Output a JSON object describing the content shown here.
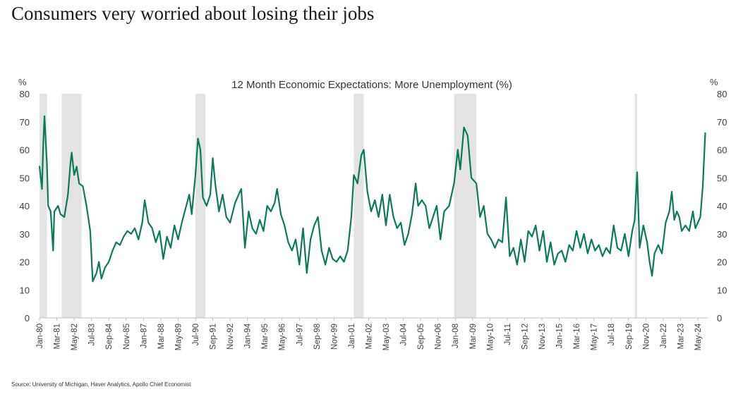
{
  "headline": "Consumers very worried about losing their jobs",
  "source": "Source: University of Michigan, Haver Analytics, Apollo Chief Economist",
  "chart_data": {
    "type": "line",
    "title": "12 Month Economic Expectations: More Unemployment (%)",
    "y_unit_left": "%",
    "y_unit_right": "%",
    "ylim": [
      0,
      80
    ],
    "yticks": [
      0,
      10,
      20,
      30,
      40,
      50,
      60,
      70,
      80
    ],
    "xlim": [
      "1980-01",
      "2025-01"
    ],
    "line_color": "#0b7a5a",
    "recession_color": "#e3e3e3",
    "x_tick_labels": [
      "Jan-80",
      "Mar-81",
      "May-82",
      "Jul-83",
      "Sep-84",
      "Nov-85",
      "Jan-87",
      "Mar-88",
      "May-89",
      "Jul-90",
      "Sep-91",
      "Nov-92",
      "Jan-94",
      "Mar-95",
      "May-96",
      "Jul-97",
      "Sep-98",
      "Nov-99",
      "Jan-01",
      "Mar-02",
      "May-03",
      "Jul-04",
      "Sep-05",
      "Nov-06",
      "Jan-08",
      "Mar-09",
      "May-10",
      "Jul-11",
      "Sep-12",
      "Nov-13",
      "Jan-15",
      "Mar-16",
      "May-17",
      "Jul-18",
      "Sep-19",
      "Nov-20",
      "Jan-22",
      "Mar-23",
      "May-24"
    ],
    "recessions": [
      [
        "1980-01",
        "1980-07"
      ],
      [
        "1981-07",
        "1982-11"
      ],
      [
        "1990-07",
        "1991-03"
      ],
      [
        "2001-03",
        "2001-11"
      ],
      [
        "2007-12",
        "2009-06"
      ],
      [
        "2020-02",
        "2020-04"
      ]
    ],
    "series": [
      {
        "points": [
          [
            "1980-01",
            54
          ],
          [
            "1980-03",
            46
          ],
          [
            "1980-04",
            62
          ],
          [
            "1980-05",
            72
          ],
          [
            "1980-07",
            55
          ],
          [
            "1980-08",
            40
          ],
          [
            "1980-10",
            38
          ],
          [
            "1980-12",
            24
          ],
          [
            "1981-01",
            38
          ],
          [
            "1981-04",
            40
          ],
          [
            "1981-06",
            37
          ],
          [
            "1981-09",
            36
          ],
          [
            "1981-12",
            44
          ],
          [
            "1982-02",
            55
          ],
          [
            "1982-03",
            59
          ],
          [
            "1982-05",
            51
          ],
          [
            "1982-07",
            54
          ],
          [
            "1982-09",
            48
          ],
          [
            "1982-12",
            47
          ],
          [
            "1983-03",
            40
          ],
          [
            "1983-06",
            31
          ],
          [
            "1983-08",
            13
          ],
          [
            "1983-11",
            16
          ],
          [
            "1984-01",
            20
          ],
          [
            "1984-03",
            14
          ],
          [
            "1984-06",
            18
          ],
          [
            "1984-09",
            20
          ],
          [
            "1984-12",
            24
          ],
          [
            "1985-03",
            27
          ],
          [
            "1985-06",
            26
          ],
          [
            "1985-09",
            29
          ],
          [
            "1985-12",
            31
          ],
          [
            "1986-03",
            30
          ],
          [
            "1986-06",
            32
          ],
          [
            "1986-09",
            28
          ],
          [
            "1986-12",
            34
          ],
          [
            "1987-02",
            42
          ],
          [
            "1987-05",
            34
          ],
          [
            "1987-08",
            32
          ],
          [
            "1987-11",
            27
          ],
          [
            "1988-02",
            31
          ],
          [
            "1988-05",
            21
          ],
          [
            "1988-08",
            29
          ],
          [
            "1988-11",
            25
          ],
          [
            "1989-02",
            33
          ],
          [
            "1989-05",
            28
          ],
          [
            "1989-08",
            34
          ],
          [
            "1989-11",
            39
          ],
          [
            "1990-02",
            44
          ],
          [
            "1990-04",
            37
          ],
          [
            "1990-07",
            51
          ],
          [
            "1990-09",
            64
          ],
          [
            "1990-11",
            60
          ],
          [
            "1991-01",
            43
          ],
          [
            "1991-04",
            40
          ],
          [
            "1991-07",
            44
          ],
          [
            "1991-09",
            57
          ],
          [
            "1991-11",
            48
          ],
          [
            "1992-02",
            38
          ],
          [
            "1992-05",
            44
          ],
          [
            "1992-08",
            36
          ],
          [
            "1992-11",
            34
          ],
          [
            "1993-03",
            41
          ],
          [
            "1993-06",
            44
          ],
          [
            "1993-08",
            46
          ],
          [
            "1993-11",
            25
          ],
          [
            "1994-02",
            38
          ],
          [
            "1994-05",
            32
          ],
          [
            "1994-08",
            30
          ],
          [
            "1994-11",
            35
          ],
          [
            "1995-02",
            31
          ],
          [
            "1995-05",
            40
          ],
          [
            "1995-08",
            38
          ],
          [
            "1995-11",
            41
          ],
          [
            "1996-01",
            46
          ],
          [
            "1996-04",
            37
          ],
          [
            "1996-07",
            33
          ],
          [
            "1996-10",
            27
          ],
          [
            "1997-01",
            24
          ],
          [
            "1997-04",
            28
          ],
          [
            "1997-07",
            19
          ],
          [
            "1997-10",
            32
          ],
          [
            "1998-01",
            16
          ],
          [
            "1998-04",
            28
          ],
          [
            "1998-07",
            33
          ],
          [
            "1998-10",
            36
          ],
          [
            "1999-01",
            24
          ],
          [
            "1999-04",
            19
          ],
          [
            "1999-07",
            25
          ],
          [
            "1999-10",
            21
          ],
          [
            "2000-01",
            20
          ],
          [
            "2000-04",
            22
          ],
          [
            "2000-07",
            20
          ],
          [
            "2000-10",
            24
          ],
          [
            "2001-01",
            36
          ],
          [
            "2001-03",
            51
          ],
          [
            "2001-06",
            48
          ],
          [
            "2001-09",
            58
          ],
          [
            "2001-11",
            60
          ],
          [
            "2002-02",
            45
          ],
          [
            "2002-05",
            38
          ],
          [
            "2002-08",
            42
          ],
          [
            "2002-11",
            36
          ],
          [
            "2003-02",
            44
          ],
          [
            "2003-05",
            33
          ],
          [
            "2003-08",
            44
          ],
          [
            "2003-11",
            36
          ],
          [
            "2004-02",
            32
          ],
          [
            "2004-05",
            34
          ],
          [
            "2004-08",
            26
          ],
          [
            "2004-11",
            30
          ],
          [
            "2005-02",
            37
          ],
          [
            "2005-05",
            48
          ],
          [
            "2005-07",
            40
          ],
          [
            "2005-10",
            42
          ],
          [
            "2006-01",
            40
          ],
          [
            "2006-04",
            32
          ],
          [
            "2006-07",
            36
          ],
          [
            "2006-10",
            40
          ],
          [
            "2007-01",
            28
          ],
          [
            "2007-04",
            38
          ],
          [
            "2007-08",
            40
          ],
          [
            "2007-12",
            48
          ],
          [
            "2008-03",
            60
          ],
          [
            "2008-05",
            53
          ],
          [
            "2008-08",
            68
          ],
          [
            "2008-11",
            65
          ],
          [
            "2009-02",
            50
          ],
          [
            "2009-06",
            48
          ],
          [
            "2009-09",
            36
          ],
          [
            "2009-12",
            40
          ],
          [
            "2010-03",
            30
          ],
          [
            "2010-06",
            28
          ],
          [
            "2010-09",
            25
          ],
          [
            "2010-12",
            28
          ],
          [
            "2011-03",
            27
          ],
          [
            "2011-06",
            43
          ],
          [
            "2011-09",
            22
          ],
          [
            "2011-12",
            25
          ],
          [
            "2012-03",
            19
          ],
          [
            "2012-06",
            28
          ],
          [
            "2012-09",
            20
          ],
          [
            "2012-12",
            31
          ],
          [
            "2013-03",
            29
          ],
          [
            "2013-06",
            33
          ],
          [
            "2013-09",
            24
          ],
          [
            "2013-12",
            31
          ],
          [
            "2014-03",
            20
          ],
          [
            "2014-06",
            27
          ],
          [
            "2014-09",
            19
          ],
          [
            "2014-12",
            23
          ],
          [
            "2015-03",
            24
          ],
          [
            "2015-06",
            20
          ],
          [
            "2015-09",
            26
          ],
          [
            "2015-12",
            24
          ],
          [
            "2016-03",
            31
          ],
          [
            "2016-06",
            25
          ],
          [
            "2016-09",
            30
          ],
          [
            "2016-12",
            23
          ],
          [
            "2017-03",
            28
          ],
          [
            "2017-06",
            24
          ],
          [
            "2017-09",
            26
          ],
          [
            "2017-12",
            22
          ],
          [
            "2018-03",
            25
          ],
          [
            "2018-06",
            23
          ],
          [
            "2018-09",
            33
          ],
          [
            "2018-12",
            25
          ],
          [
            "2019-03",
            24
          ],
          [
            "2019-06",
            30
          ],
          [
            "2019-09",
            22
          ],
          [
            "2019-12",
            31
          ],
          [
            "2020-02",
            35
          ],
          [
            "2020-04",
            52
          ],
          [
            "2020-06",
            25
          ],
          [
            "2020-09",
            33
          ],
          [
            "2020-12",
            27
          ],
          [
            "2021-02",
            20
          ],
          [
            "2021-04",
            15
          ],
          [
            "2021-06",
            23
          ],
          [
            "2021-09",
            26
          ],
          [
            "2021-12",
            23
          ],
          [
            "2022-03",
            34
          ],
          [
            "2022-06",
            38
          ],
          [
            "2022-08",
            45
          ],
          [
            "2022-10",
            35
          ],
          [
            "2022-12",
            38
          ],
          [
            "2023-02",
            36
          ],
          [
            "2023-04",
            31
          ],
          [
            "2023-07",
            33
          ],
          [
            "2023-10",
            31
          ],
          [
            "2024-01",
            38
          ],
          [
            "2024-03",
            32
          ],
          [
            "2024-05",
            34
          ],
          [
            "2024-07",
            36
          ],
          [
            "2024-09",
            47
          ],
          [
            "2024-11",
            66
          ]
        ]
      }
    ]
  }
}
